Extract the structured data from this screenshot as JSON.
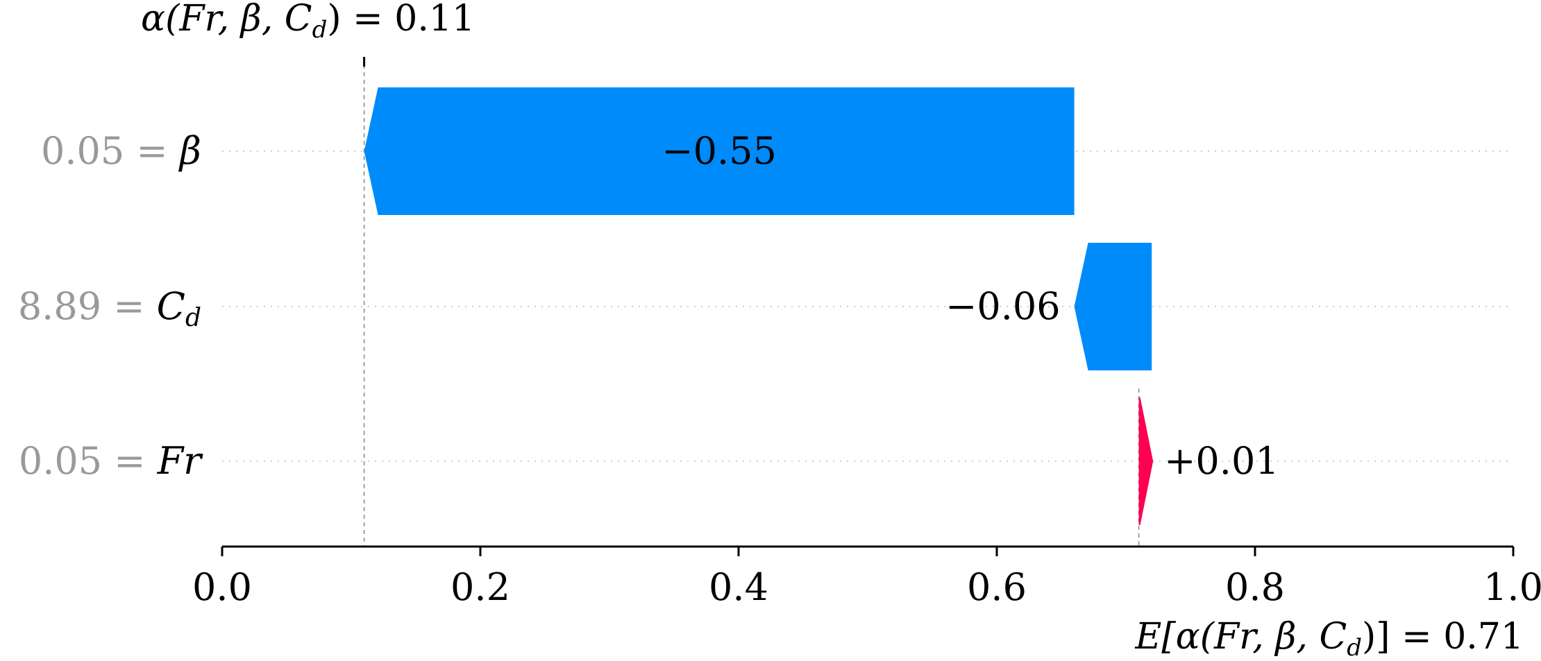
{
  "chart_data": {
    "type": "waterfall",
    "top_label": {
      "prefix": "α(Fr, β, C",
      "sub": "d",
      "suffix": ") = 0.11"
    },
    "bottom_label": {
      "prefix": "E[α(Fr, β, C",
      "sub": "d",
      "suffix": ")] = 0.71"
    },
    "base_value": 0.71,
    "final_value": 0.11,
    "xlim": [
      0.0,
      1.0
    ],
    "xticks": [
      0.0,
      0.2,
      0.4,
      0.6,
      0.8,
      1.0
    ],
    "xtick_labels": [
      "0.0",
      "0.2",
      "0.4",
      "0.6",
      "0.8",
      "1.0"
    ],
    "features": [
      {
        "value_text": "0.05",
        "feature": "β",
        "sub": "",
        "start": 0.66,
        "end": 0.11,
        "contribution": -0.55,
        "label": "−0.55",
        "label_position": "inside"
      },
      {
        "value_text": "8.89",
        "feature": "C",
        "sub": "d",
        "start": 0.72,
        "end": 0.66,
        "contribution": -0.06,
        "label": "−0.06",
        "label_position": "left"
      },
      {
        "value_text": "0.05",
        "feature": "Fr",
        "sub": "",
        "start": 0.71,
        "end": 0.72,
        "contribution": 0.01,
        "label": "+0.01",
        "label_position": "right"
      }
    ],
    "colors": {
      "negative": "#008bfb",
      "positive": "#ff0051",
      "value_text": "#999999",
      "text": "#000000",
      "gridline": "#cccccc"
    }
  }
}
